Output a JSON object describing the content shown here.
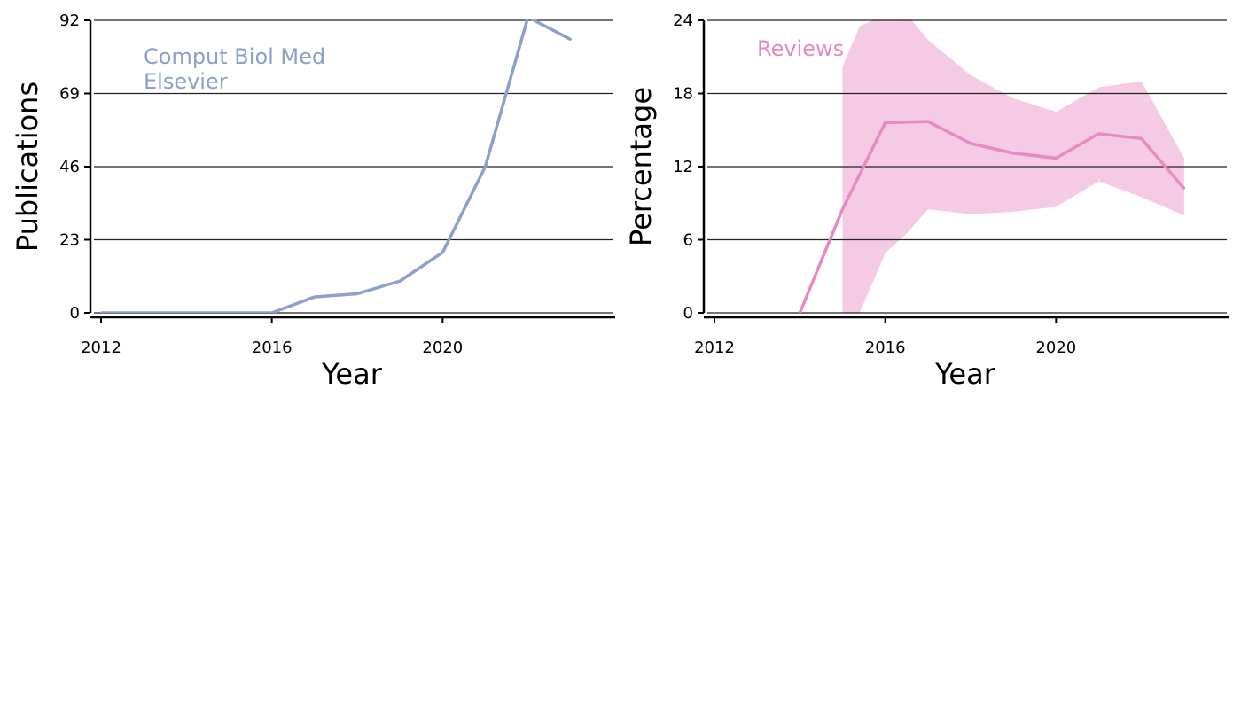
{
  "colors": {
    "left_series": "#8da0cb",
    "right_series": "#e78ac3",
    "right_band": "#f5cae4",
    "grid": "#222222",
    "axis": "#000000"
  },
  "chart_data": [
    {
      "type": "line",
      "xlabel": "Year",
      "ylabel": "Publications",
      "xlim": [
        2012,
        2024
      ],
      "ylim": [
        0,
        92
      ],
      "xticks": [
        2012,
        2016,
        2020
      ],
      "yticks": [
        0,
        23,
        46,
        69,
        92
      ],
      "grid": "horizontal",
      "annotation_lines": [
        "Comput Biol Med",
        "Elsevier"
      ],
      "series": [
        {
          "x": [
            2012,
            2013,
            2014,
            2015,
            2016,
            2017,
            2018,
            2019,
            2020,
            2021,
            2022,
            2023
          ],
          "values": [
            0,
            0,
            0,
            0,
            0,
            5,
            6,
            10,
            19,
            46,
            93,
            86
          ]
        }
      ]
    },
    {
      "type": "line",
      "xlabel": "Year",
      "ylabel": "Percentage",
      "xlim": [
        2012,
        2024
      ],
      "ylim": [
        0,
        24
      ],
      "xticks": [
        2012,
        2016,
        2020
      ],
      "yticks": [
        0,
        6,
        12,
        18,
        24
      ],
      "grid": "horizontal",
      "annotation_lines": [
        "Reviews"
      ],
      "series": [
        {
          "x": [
            2014,
            2015,
            2016,
            2017,
            2018,
            2019,
            2020,
            2021,
            2022,
            2023
          ],
          "values": [
            0,
            8.5,
            15.6,
            15.7,
            13.9,
            13.1,
            12.7,
            14.7,
            14.3,
            10.2
          ]
        }
      ],
      "band": {
        "x": [
          2015,
          2015.4,
          2016,
          2016.5,
          2017,
          2018,
          2019,
          2020,
          2021,
          2022,
          2023
        ],
        "lower": [
          0,
          0,
          4.9,
          6.5,
          8.5,
          8.1,
          8.3,
          8.7,
          10.8,
          9.5,
          8.0
        ],
        "upper": [
          20.2,
          23.5,
          24.5,
          24.5,
          22.4,
          19.5,
          17.6,
          16.5,
          18.5,
          19.0,
          12.7
        ]
      }
    }
  ]
}
